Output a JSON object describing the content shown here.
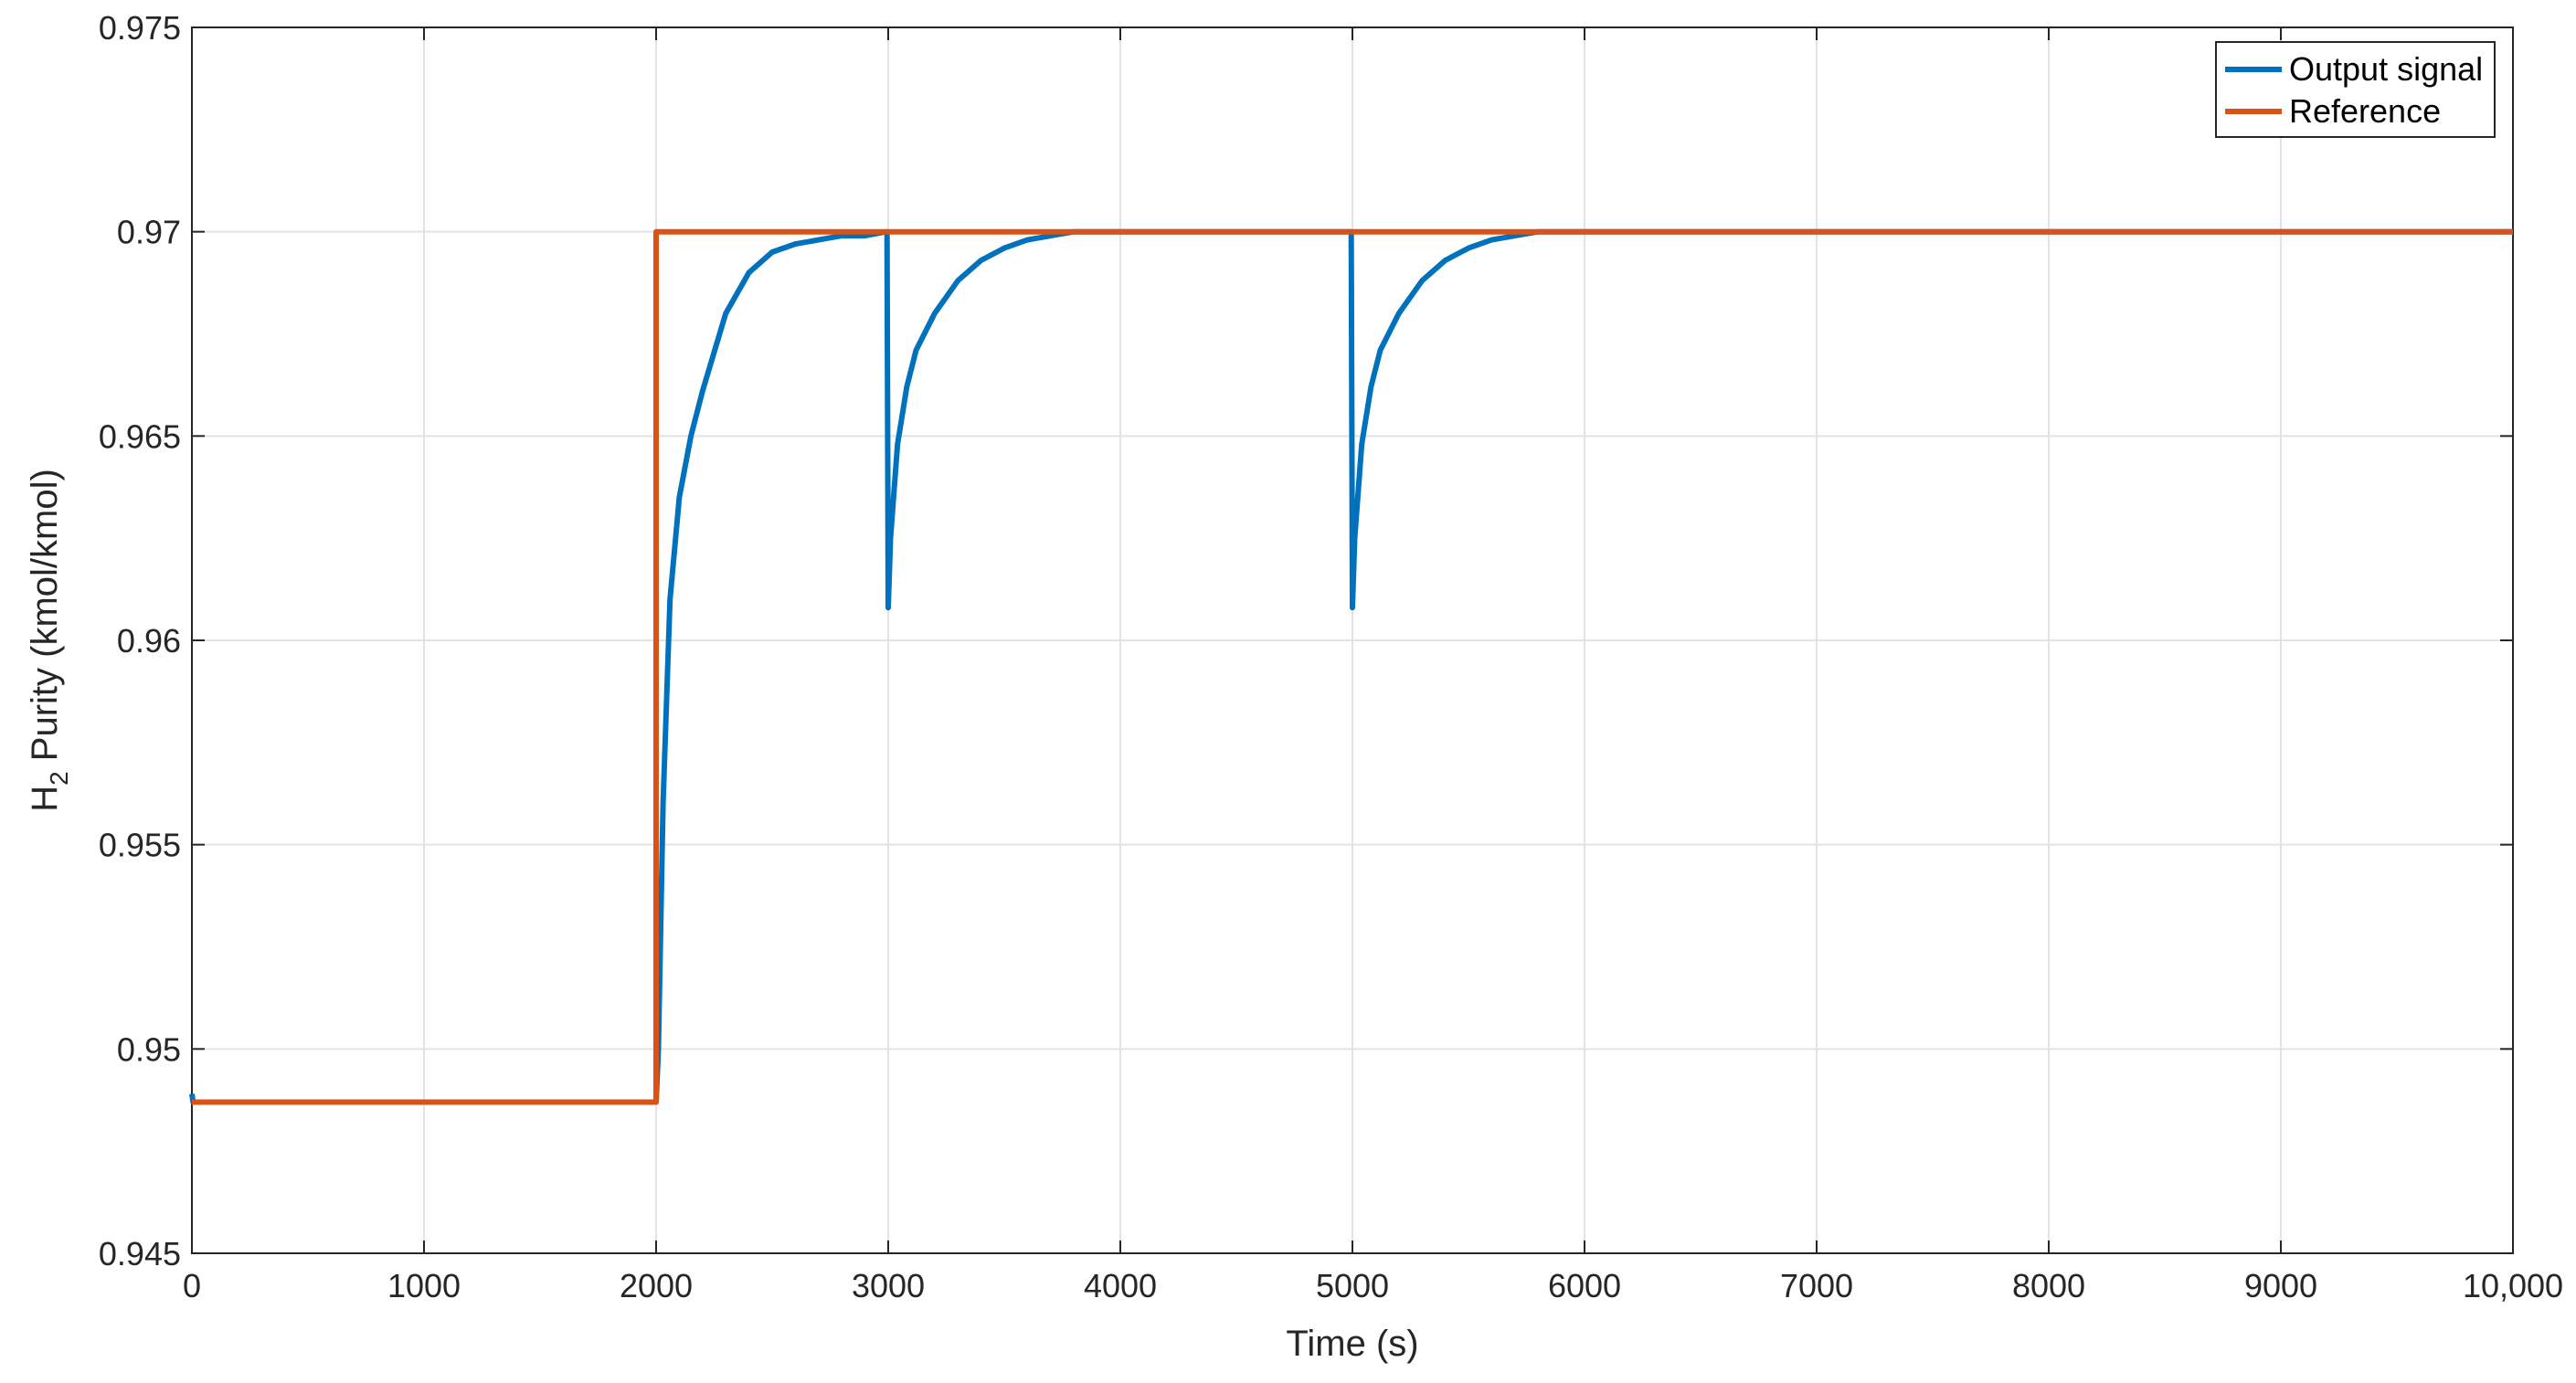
{
  "chart_data": {
    "type": "line",
    "title": "",
    "xlabel": "Time (s)",
    "ylabel_main": "H",
    "ylabel_sub": "2",
    "ylabel_rest": " Purity (kmol/kmol)",
    "xlim": [
      0,
      10000
    ],
    "ylim": [
      0.945,
      0.975
    ],
    "x_ticks": [
      0,
      1000,
      2000,
      3000,
      4000,
      5000,
      6000,
      7000,
      8000,
      9000,
      10000
    ],
    "x_tick_labels": [
      "0",
      "1000",
      "2000",
      "3000",
      "4000",
      "5000",
      "6000",
      "7000",
      "8000",
      "9000",
      "10,000"
    ],
    "y_ticks": [
      0.945,
      0.95,
      0.955,
      0.96,
      0.965,
      0.97,
      0.975
    ],
    "y_tick_labels": [
      "0.945",
      "0.95",
      "0.955",
      "0.96",
      "0.965",
      "0.97",
      "0.975"
    ],
    "grid": true,
    "legend_position": "top-right",
    "series": [
      {
        "name": "Output signal",
        "color": "#0072BD",
        "x": [
          0,
          5,
          10,
          2000,
          2010,
          2030,
          2060,
          2100,
          2150,
          2200,
          2300,
          2400,
          2500,
          2600,
          2700,
          2800,
          2900,
          2990,
          2995,
          3000,
          3010,
          3040,
          3080,
          3120,
          3200,
          3300,
          3400,
          3500,
          3600,
          3700,
          3800,
          3900,
          4000,
          4500,
          4990,
          4995,
          5000,
          5010,
          5040,
          5080,
          5120,
          5200,
          5300,
          5400,
          5500,
          5600,
          5700,
          5800,
          5900,
          6000,
          7000,
          8000,
          9000,
          10000
        ],
        "y": [
          0.9489,
          0.9487,
          0.9487,
          0.9487,
          0.95,
          0.956,
          0.961,
          0.9635,
          0.965,
          0.9661,
          0.968,
          0.969,
          0.9695,
          0.9697,
          0.9698,
          0.9699,
          0.9699,
          0.97,
          0.97,
          0.9608,
          0.9625,
          0.9648,
          0.9662,
          0.9671,
          0.968,
          0.9688,
          0.9693,
          0.9696,
          0.9698,
          0.9699,
          0.97,
          0.97,
          0.97,
          0.97,
          0.97,
          0.97,
          0.9608,
          0.9625,
          0.9648,
          0.9662,
          0.9671,
          0.968,
          0.9688,
          0.9693,
          0.9696,
          0.9698,
          0.9699,
          0.97,
          0.97,
          0.97,
          0.97,
          0.97,
          0.97,
          0.97
        ]
      },
      {
        "name": "Reference",
        "color": "#D95319",
        "x": [
          0,
          2000,
          2000,
          10000
        ],
        "y": [
          0.9487,
          0.9487,
          0.97,
          0.97
        ]
      }
    ]
  }
}
